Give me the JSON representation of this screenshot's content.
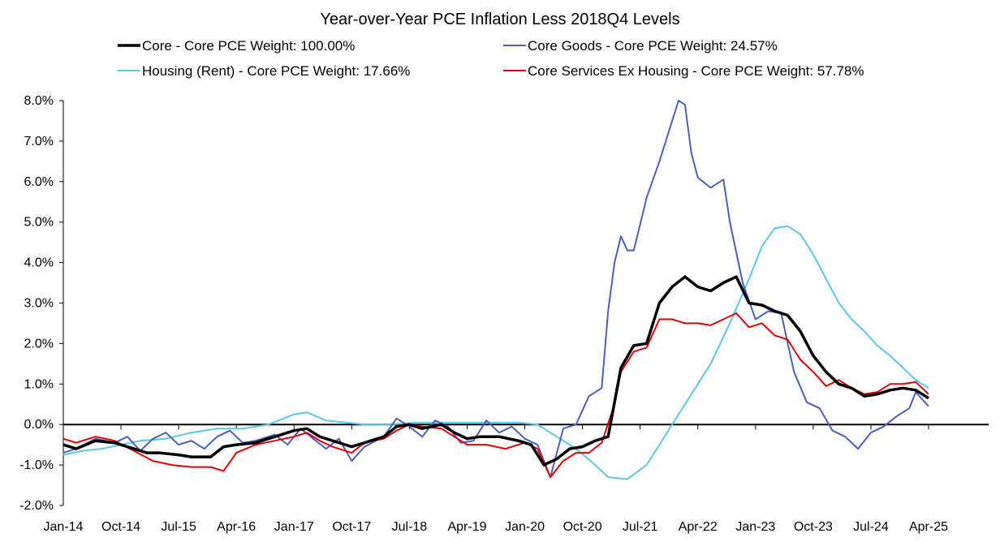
{
  "chart_data": {
    "type": "line",
    "title": "Year-over-Year PCE Inflation Less 2018Q4 Levels",
    "xlabel": "",
    "ylabel": "",
    "ylim": [
      -2.0,
      8.0
    ],
    "yticks": [
      "8.0%",
      "7.0%",
      "6.0%",
      "5.0%",
      "4.0%",
      "3.0%",
      "2.0%",
      "1.0%",
      "0.0%",
      "-1.0%",
      "-2.0%"
    ],
    "ytick_values": [
      8,
      7,
      6,
      5,
      4,
      3,
      2,
      1,
      0,
      -1,
      -2
    ],
    "xtick_labels": [
      "Jan-14",
      "Oct-14",
      "Jul-15",
      "Apr-16",
      "Jan-17",
      "Oct-17",
      "Jul-18",
      "Apr-19",
      "Jan-20",
      "Oct-20",
      "Jul-21",
      "Apr-22",
      "Jan-23",
      "Oct-23",
      "Jul-24",
      "Apr-25"
    ],
    "xtick_values": [
      "2014-01",
      "2014-10",
      "2015-07",
      "2016-04",
      "2017-01",
      "2017-10",
      "2018-07",
      "2019-04",
      "2020-01",
      "2020-10",
      "2021-07",
      "2022-04",
      "2023-01",
      "2023-10",
      "2024-07",
      "2025-04"
    ],
    "x_start": "2014-01",
    "x_end": "2025-04",
    "grid": false,
    "legend_position": "top",
    "series": [
      {
        "name": "Core - Core PCE Weight: 100.00%",
        "color": "#000000",
        "width": "thick",
        "points": [
          [
            "2014-01",
            -0.5
          ],
          [
            "2014-03",
            -0.6
          ],
          [
            "2014-06",
            -0.4
          ],
          [
            "2014-09",
            -0.45
          ],
          [
            "2014-12",
            -0.6
          ],
          [
            "2015-02",
            -0.7
          ],
          [
            "2015-04",
            -0.7
          ],
          [
            "2015-07",
            -0.75
          ],
          [
            "2015-09",
            -0.8
          ],
          [
            "2015-12",
            -0.8
          ],
          [
            "2016-02",
            -0.55
          ],
          [
            "2016-04",
            -0.5
          ],
          [
            "2016-07",
            -0.45
          ],
          [
            "2016-10",
            -0.3
          ],
          [
            "2017-01",
            -0.15
          ],
          [
            "2017-03",
            -0.1
          ],
          [
            "2017-05",
            -0.3
          ],
          [
            "2017-07",
            -0.4
          ],
          [
            "2017-10",
            -0.55
          ],
          [
            "2017-12",
            -0.45
          ],
          [
            "2018-03",
            -0.3
          ],
          [
            "2018-05",
            -0.05
          ],
          [
            "2018-07",
            0.0
          ],
          [
            "2018-09",
            -0.1
          ],
          [
            "2018-12",
            0.0
          ],
          [
            "2019-02",
            -0.2
          ],
          [
            "2019-04",
            -0.35
          ],
          [
            "2019-06",
            -0.3
          ],
          [
            "2019-09",
            -0.3
          ],
          [
            "2019-12",
            -0.4
          ],
          [
            "2020-02",
            -0.5
          ],
          [
            "2020-04",
            -1.0
          ],
          [
            "2020-06",
            -0.85
          ],
          [
            "2020-08",
            -0.6
          ],
          [
            "2020-10",
            -0.55
          ],
          [
            "2020-12",
            -0.4
          ],
          [
            "2021-02",
            -0.3
          ],
          [
            "2021-04",
            1.4
          ],
          [
            "2021-06",
            1.95
          ],
          [
            "2021-08",
            2.0
          ],
          [
            "2021-10",
            3.0
          ],
          [
            "2021-12",
            3.4
          ],
          [
            "2022-02",
            3.65
          ],
          [
            "2022-04",
            3.4
          ],
          [
            "2022-06",
            3.3
          ],
          [
            "2022-08",
            3.5
          ],
          [
            "2022-10",
            3.65
          ],
          [
            "2022-12",
            3.0
          ],
          [
            "2023-02",
            2.95
          ],
          [
            "2023-04",
            2.8
          ],
          [
            "2023-06",
            2.7
          ],
          [
            "2023-08",
            2.3
          ],
          [
            "2023-10",
            1.7
          ],
          [
            "2023-12",
            1.3
          ],
          [
            "2024-02",
            1.0
          ],
          [
            "2024-04",
            0.9
          ],
          [
            "2024-06",
            0.7
          ],
          [
            "2024-08",
            0.75
          ],
          [
            "2024-10",
            0.85
          ],
          [
            "2024-12",
            0.9
          ],
          [
            "2025-02",
            0.85
          ],
          [
            "2025-04",
            0.65
          ]
        ]
      },
      {
        "name": "Core Goods - Core PCE Weight: 24.57%",
        "color": "#4b5fbf",
        "width": "normal",
        "points": [
          [
            "2014-01",
            -0.7
          ],
          [
            "2014-03",
            -0.6
          ],
          [
            "2014-06",
            -0.35
          ],
          [
            "2014-09",
            -0.45
          ],
          [
            "2014-11",
            -0.3
          ],
          [
            "2015-01",
            -0.65
          ],
          [
            "2015-03",
            -0.35
          ],
          [
            "2015-05",
            -0.2
          ],
          [
            "2015-07",
            -0.5
          ],
          [
            "2015-09",
            -0.4
          ],
          [
            "2015-11",
            -0.6
          ],
          [
            "2016-01",
            -0.3
          ],
          [
            "2016-03",
            -0.15
          ],
          [
            "2016-05",
            -0.45
          ],
          [
            "2016-07",
            -0.4
          ],
          [
            "2016-10",
            -0.25
          ],
          [
            "2016-12",
            -0.5
          ],
          [
            "2017-02",
            -0.1
          ],
          [
            "2017-04",
            -0.35
          ],
          [
            "2017-06",
            -0.6
          ],
          [
            "2017-08",
            -0.35
          ],
          [
            "2017-10",
            -0.9
          ],
          [
            "2017-12",
            -0.55
          ],
          [
            "2018-03",
            -0.3
          ],
          [
            "2018-05",
            0.15
          ],
          [
            "2018-07",
            -0.05
          ],
          [
            "2018-09",
            -0.3
          ],
          [
            "2018-11",
            0.1
          ],
          [
            "2019-01",
            -0.05
          ],
          [
            "2019-03",
            -0.45
          ],
          [
            "2019-05",
            -0.4
          ],
          [
            "2019-07",
            0.1
          ],
          [
            "2019-09",
            -0.2
          ],
          [
            "2019-11",
            -0.05
          ],
          [
            "2020-01",
            -0.35
          ],
          [
            "2020-03",
            -0.5
          ],
          [
            "2020-05",
            -1.3
          ],
          [
            "2020-07",
            -0.1
          ],
          [
            "2020-09",
            0.0
          ],
          [
            "2020-11",
            0.7
          ],
          [
            "2021-01",
            0.9
          ],
          [
            "2021-02",
            2.8
          ],
          [
            "2021-03",
            4.0
          ],
          [
            "2021-04",
            4.65
          ],
          [
            "2021-05",
            4.3
          ],
          [
            "2021-06",
            4.3
          ],
          [
            "2021-08",
            5.6
          ],
          [
            "2021-10",
            6.5
          ],
          [
            "2021-12",
            7.5
          ],
          [
            "2022-01",
            8.0
          ],
          [
            "2022-02",
            7.9
          ],
          [
            "2022-03",
            6.7
          ],
          [
            "2022-04",
            6.1
          ],
          [
            "2022-06",
            5.85
          ],
          [
            "2022-08",
            6.05
          ],
          [
            "2022-09",
            5.0
          ],
          [
            "2022-11",
            3.5
          ],
          [
            "2023-01",
            2.6
          ],
          [
            "2023-03",
            2.8
          ],
          [
            "2023-05",
            2.75
          ],
          [
            "2023-07",
            1.3
          ],
          [
            "2023-09",
            0.55
          ],
          [
            "2023-11",
            0.4
          ],
          [
            "2024-01",
            -0.15
          ],
          [
            "2024-03",
            -0.3
          ],
          [
            "2024-05",
            -0.6
          ],
          [
            "2024-07",
            -0.2
          ],
          [
            "2024-09",
            -0.05
          ],
          [
            "2024-11",
            0.2
          ],
          [
            "2025-01",
            0.4
          ],
          [
            "2025-02",
            0.8
          ],
          [
            "2025-04",
            0.45
          ]
        ]
      },
      {
        "name": "Housing (Rent) - Core PCE Weight: 17.66%",
        "color": "#5bc8ea",
        "width": "normal",
        "points": [
          [
            "2014-01",
            -0.75
          ],
          [
            "2014-04",
            -0.65
          ],
          [
            "2014-07",
            -0.6
          ],
          [
            "2014-10",
            -0.5
          ],
          [
            "2015-01",
            -0.4
          ],
          [
            "2015-05",
            -0.35
          ],
          [
            "2015-09",
            -0.2
          ],
          [
            "2016-01",
            -0.1
          ],
          [
            "2016-05",
            -0.1
          ],
          [
            "2016-09",
            0.0
          ],
          [
            "2017-01",
            0.25
          ],
          [
            "2017-03",
            0.3
          ],
          [
            "2017-06",
            0.1
          ],
          [
            "2017-09",
            0.05
          ],
          [
            "2017-12",
            0.0
          ],
          [
            "2018-04",
            0.0
          ],
          [
            "2018-08",
            0.05
          ],
          [
            "2018-12",
            0.05
          ],
          [
            "2019-04",
            0.05
          ],
          [
            "2019-08",
            0.05
          ],
          [
            "2019-12",
            0.05
          ],
          [
            "2020-03",
            0.0
          ],
          [
            "2020-06",
            -0.3
          ],
          [
            "2020-09",
            -0.6
          ],
          [
            "2020-12",
            -1.0
          ],
          [
            "2021-02",
            -1.3
          ],
          [
            "2021-05",
            -1.35
          ],
          [
            "2021-08",
            -1.0
          ],
          [
            "2021-10",
            -0.5
          ],
          [
            "2021-12",
            0.0
          ],
          [
            "2022-02",
            0.5
          ],
          [
            "2022-04",
            1.0
          ],
          [
            "2022-06",
            1.5
          ],
          [
            "2022-09",
            2.5
          ],
          [
            "2022-12",
            3.6
          ],
          [
            "2023-02",
            4.4
          ],
          [
            "2023-04",
            4.85
          ],
          [
            "2023-06",
            4.9
          ],
          [
            "2023-08",
            4.7
          ],
          [
            "2023-10",
            4.2
          ],
          [
            "2023-12",
            3.6
          ],
          [
            "2024-02",
            3.0
          ],
          [
            "2024-04",
            2.6
          ],
          [
            "2024-06",
            2.3
          ],
          [
            "2024-08",
            1.95
          ],
          [
            "2024-10",
            1.7
          ],
          [
            "2024-12",
            1.4
          ],
          [
            "2025-02",
            1.1
          ],
          [
            "2025-04",
            0.9
          ]
        ]
      },
      {
        "name": "Core Services Ex Housing - Core PCE Weight: 57.78%",
        "color": "#e00000",
        "width": "normal",
        "points": [
          [
            "2014-01",
            -0.35
          ],
          [
            "2014-03",
            -0.45
          ],
          [
            "2014-06",
            -0.3
          ],
          [
            "2014-09",
            -0.4
          ],
          [
            "2014-12",
            -0.65
          ],
          [
            "2015-03",
            -0.9
          ],
          [
            "2015-06",
            -1.0
          ],
          [
            "2015-09",
            -1.05
          ],
          [
            "2015-12",
            -1.05
          ],
          [
            "2016-02",
            -1.15
          ],
          [
            "2016-04",
            -0.7
          ],
          [
            "2016-07",
            -0.5
          ],
          [
            "2016-10",
            -0.4
          ],
          [
            "2017-01",
            -0.3
          ],
          [
            "2017-03",
            -0.2
          ],
          [
            "2017-05",
            -0.4
          ],
          [
            "2017-07",
            -0.55
          ],
          [
            "2017-10",
            -0.7
          ],
          [
            "2017-12",
            -0.45
          ],
          [
            "2018-03",
            -0.35
          ],
          [
            "2018-05",
            -0.15
          ],
          [
            "2018-07",
            0.0
          ],
          [
            "2018-09",
            -0.05
          ],
          [
            "2018-12",
            -0.1
          ],
          [
            "2019-02",
            -0.3
          ],
          [
            "2019-04",
            -0.5
          ],
          [
            "2019-07",
            -0.5
          ],
          [
            "2019-10",
            -0.6
          ],
          [
            "2020-01",
            -0.45
          ],
          [
            "2020-03",
            -0.6
          ],
          [
            "2020-05",
            -1.3
          ],
          [
            "2020-07",
            -0.9
          ],
          [
            "2020-09",
            -0.7
          ],
          [
            "2020-11",
            -0.7
          ],
          [
            "2021-01",
            -0.45
          ],
          [
            "2021-03",
            0.5
          ],
          [
            "2021-04",
            1.3
          ],
          [
            "2021-06",
            1.8
          ],
          [
            "2021-08",
            1.9
          ],
          [
            "2021-10",
            2.6
          ],
          [
            "2021-12",
            2.6
          ],
          [
            "2022-02",
            2.5
          ],
          [
            "2022-04",
            2.5
          ],
          [
            "2022-06",
            2.45
          ],
          [
            "2022-08",
            2.6
          ],
          [
            "2022-10",
            2.75
          ],
          [
            "2022-12",
            2.4
          ],
          [
            "2023-02",
            2.5
          ],
          [
            "2023-04",
            2.2
          ],
          [
            "2023-06",
            2.1
          ],
          [
            "2023-08",
            1.6
          ],
          [
            "2023-10",
            1.3
          ],
          [
            "2023-12",
            0.95
          ],
          [
            "2024-02",
            1.1
          ],
          [
            "2024-04",
            0.9
          ],
          [
            "2024-06",
            0.75
          ],
          [
            "2024-08",
            0.8
          ],
          [
            "2024-10",
            1.0
          ],
          [
            "2024-12",
            1.0
          ],
          [
            "2025-02",
            1.05
          ],
          [
            "2025-04",
            0.75
          ]
        ]
      }
    ]
  }
}
